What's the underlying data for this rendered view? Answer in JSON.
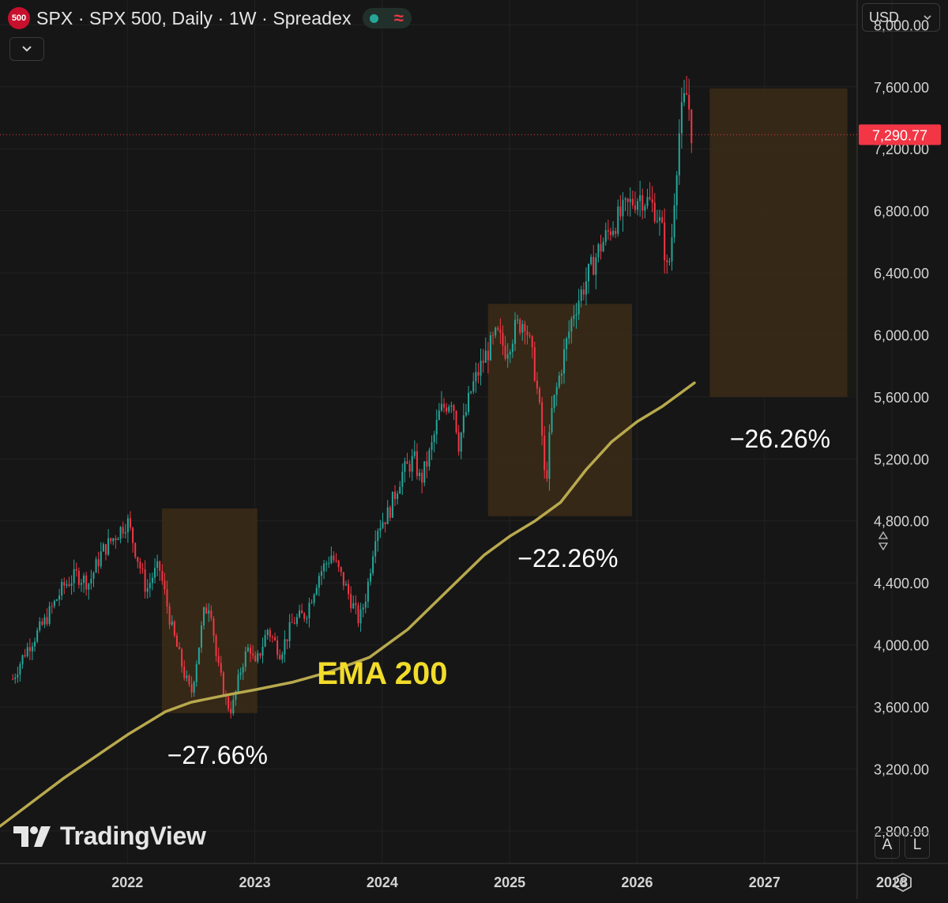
{
  "header": {
    "symbol_badge": "500",
    "title": "SPX · SPX 500, Daily · 1W · Spreadex",
    "status_icon": "green-dot",
    "live_icon": "≈"
  },
  "toolbar": {
    "collapse_icon": "chevron-down-icon"
  },
  "currency": {
    "selected": "USD"
  },
  "scale_buttons": {
    "auto": "A",
    "log": "L"
  },
  "logo": {
    "text": "TradingView"
  },
  "colors": {
    "background": "#161616",
    "up_candle": "#26a69a",
    "down_candle": "#f23645",
    "ema_line": "#b8a94e",
    "highlight_box": "#3b2c18",
    "annotation_text": "#ffffff",
    "ema_label": "#f2dc2a",
    "price_tag": "#f23645"
  },
  "chart_data": {
    "type": "candlestick",
    "title": "SPX · SPX 500, Daily · 1W · Spreadex",
    "x_axis": {
      "ticks": [
        "2022",
        "2023",
        "2024",
        "2025",
        "2026",
        "2027",
        "2028"
      ]
    },
    "y_axis": {
      "ticks": [
        "2,800.00",
        "3,200.00",
        "3,600.00",
        "4,000.00",
        "4,400.00",
        "4,800.00",
        "5,200.00",
        "5,600.00",
        "6,000.00",
        "6,400.00",
        "6,800.00",
        "7,200.00",
        "7,600.00",
        "8,000.00"
      ],
      "range": [
        2590,
        8160
      ]
    },
    "last_price": {
      "value": 7290.77,
      "label": "7,290.77"
    },
    "price_path": [
      [
        2021.1,
        3780
      ],
      [
        2021.2,
        3960
      ],
      [
        2021.35,
        4150
      ],
      [
        2021.5,
        4380
      ],
      [
        2021.6,
        4450
      ],
      [
        2021.7,
        4400
      ],
      [
        2021.8,
        4600
      ],
      [
        2021.9,
        4700
      ],
      [
        2022.0,
        4800
      ],
      [
        2022.05,
        4650
      ],
      [
        2022.15,
        4350
      ],
      [
        2022.2,
        4450
      ],
      [
        2022.25,
        4500
      ],
      [
        2022.35,
        4100
      ],
      [
        2022.45,
        3800
      ],
      [
        2022.5,
        3680
      ],
      [
        2022.6,
        4200
      ],
      [
        2022.65,
        4280
      ],
      [
        2022.7,
        3900
      ],
      [
        2022.78,
        3620
      ],
      [
        2022.82,
        3580
      ],
      [
        2022.9,
        3880
      ],
      [
        2022.96,
        4000
      ],
      [
        2023.0,
        3850
      ],
      [
        2023.1,
        4100
      ],
      [
        2023.2,
        3950
      ],
      [
        2023.3,
        4150
      ],
      [
        2023.4,
        4200
      ],
      [
        2023.5,
        4450
      ],
      [
        2023.6,
        4580
      ],
      [
        2023.7,
        4400
      ],
      [
        2023.82,
        4150
      ],
      [
        2023.88,
        4350
      ],
      [
        2023.95,
        4750
      ],
      [
        2024.05,
        4850
      ],
      [
        2024.15,
        5100
      ],
      [
        2024.25,
        5200
      ],
      [
        2024.3,
        5050
      ],
      [
        2024.38,
        5250
      ],
      [
        2024.45,
        5500
      ],
      [
        2024.55,
        5600
      ],
      [
        2024.6,
        5300
      ],
      [
        2024.7,
        5650
      ],
      [
        2024.8,
        5850
      ],
      [
        2024.9,
        6000
      ],
      [
        2024.97,
        5900
      ],
      [
        2025.05,
        6050
      ],
      [
        2025.12,
        6100
      ],
      [
        2025.2,
        5750
      ],
      [
        2025.25,
        5400
      ],
      [
        2025.28,
        5000
      ],
      [
        2025.33,
        5500
      ],
      [
        2025.42,
        5850
      ],
      [
        2025.5,
        6150
      ],
      [
        2025.6,
        6350
      ],
      [
        2025.7,
        6550
      ],
      [
        2025.8,
        6700
      ],
      [
        2025.88,
        6780
      ],
      [
        2025.95,
        6850
      ],
      [
        2026.02,
        6900
      ],
      [
        2026.1,
        6850
      ],
      [
        2026.15,
        6800
      ],
      [
        2026.2,
        6650
      ],
      [
        2026.24,
        6380
      ],
      [
        2026.27,
        6600
      ],
      [
        2026.3,
        7000
      ],
      [
        2026.33,
        7300
      ],
      [
        2026.36,
        7480
      ],
      [
        2026.39,
        7550
      ],
      [
        2026.41,
        7450
      ],
      [
        2026.43,
        7290
      ]
    ],
    "ema_200": [
      [
        2021.0,
        2830
      ],
      [
        2021.5,
        3140
      ],
      [
        2022.0,
        3420
      ],
      [
        2022.3,
        3570
      ],
      [
        2022.5,
        3630
      ],
      [
        2022.8,
        3680
      ],
      [
        2023.0,
        3710
      ],
      [
        2023.3,
        3760
      ],
      [
        2023.6,
        3830
      ],
      [
        2023.9,
        3920
      ],
      [
        2024.2,
        4100
      ],
      [
        2024.5,
        4340
      ],
      [
        2024.8,
        4580
      ],
      [
        2025.0,
        4700
      ],
      [
        2025.2,
        4800
      ],
      [
        2025.4,
        4920
      ],
      [
        2025.6,
        5130
      ],
      [
        2025.8,
        5310
      ],
      [
        2026.0,
        5440
      ],
      [
        2026.2,
        5540
      ],
      [
        2026.35,
        5630
      ],
      [
        2026.45,
        5690
      ]
    ],
    "annotations": [
      {
        "label": "−27.66%",
        "box_x": [
          2022.27,
          2023.02
        ],
        "box_y": [
          3560,
          4880
        ]
      },
      {
        "label": "−22.26%",
        "box_x": [
          2024.83,
          2025.96
        ],
        "box_y": [
          4830,
          6200
        ]
      },
      {
        "label": "−26.26%",
        "box_x": [
          2026.57,
          2027.65
        ],
        "box_y": [
          5600,
          7590
        ]
      }
    ],
    "ema_label": "EMA 200",
    "grid": true,
    "legend": "none"
  }
}
